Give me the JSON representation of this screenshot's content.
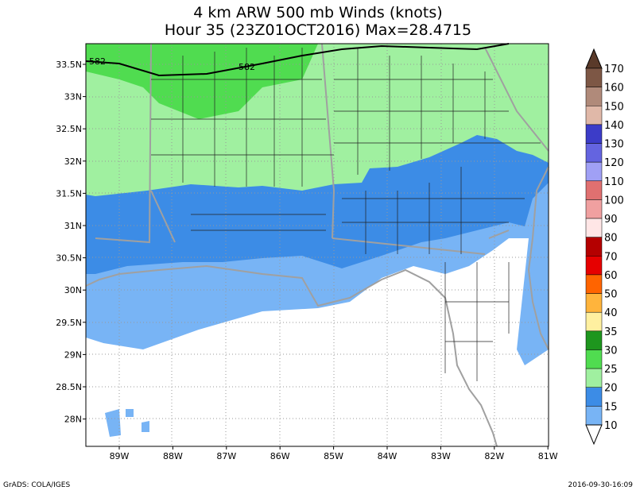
{
  "header": {
    "title": "4 km ARW 500 mb Winds (knots)",
    "subtitle": "Hour 35 (23Z01OCT2016) Max=28.4715"
  },
  "map": {
    "lat_labels": [
      "33.5N",
      "33N",
      "32.5N",
      "32N",
      "31.5N",
      "31N",
      "30.5N",
      "30N",
      "29.5N",
      "29N",
      "28.5N",
      "28N"
    ],
    "lon_labels": [
      "89W",
      "88W",
      "87W",
      "86W",
      "85W",
      "84W",
      "83W",
      "82W",
      "81W"
    ],
    "contour_labels": [
      "582",
      "582"
    ]
  },
  "colorbar": {
    "labels": [
      "170",
      "160",
      "150",
      "140",
      "130",
      "120",
      "110",
      "100",
      "90",
      "80",
      "70",
      "60",
      "50",
      "40",
      "35",
      "30",
      "25",
      "20",
      "15",
      "10"
    ],
    "colors": [
      "#5a3a2a",
      "#7d5745",
      "#b08a7a",
      "#e0b8a8",
      "#3c3cc8",
      "#6464e0",
      "#a0a0f5",
      "#e07070",
      "#f0a0a0",
      "#ffe6e6",
      "#b40000",
      "#e60000",
      "#ff6400",
      "#ffb43c",
      "#fff0a0",
      "#1e961e",
      "#50dc50",
      "#a0f0a0",
      "#3c8ce6",
      "#78b4f5",
      "#ffffff"
    ]
  },
  "footer": {
    "left": "GrADS: COLA/IGES",
    "right": "2016-09-30-16:09"
  }
}
